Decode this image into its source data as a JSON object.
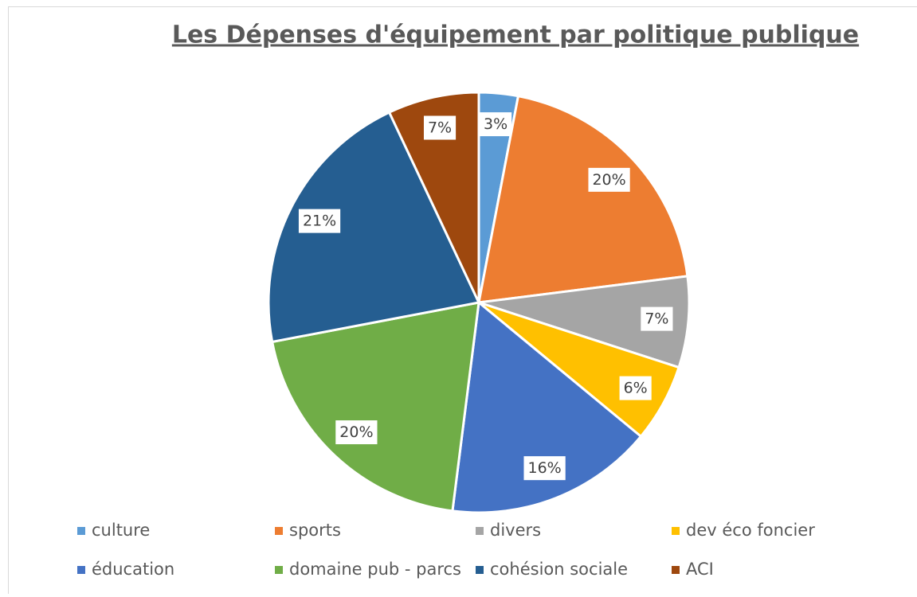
{
  "chart_data": {
    "type": "pie",
    "title": "Les Dépenses d'équipement par politique publique",
    "categories": [
      "culture",
      "sports",
      "divers",
      "dev éco foncier",
      "éducation",
      "domaine pub - parcs",
      "cohésion sociale",
      "ACI"
    ],
    "values": [
      3,
      20,
      7,
      6,
      16,
      20,
      21,
      7
    ],
    "value_labels": [
      "3%",
      "20%",
      "7%",
      "6%",
      "16%",
      "20%",
      "21%",
      "7%"
    ],
    "colors": [
      "#5b9bd5",
      "#ed7d31",
      "#a5a5a5",
      "#ffc000",
      "#4472c4",
      "#70ad47",
      "#255e91",
      "#9e480e"
    ],
    "legend": "bottom"
  }
}
